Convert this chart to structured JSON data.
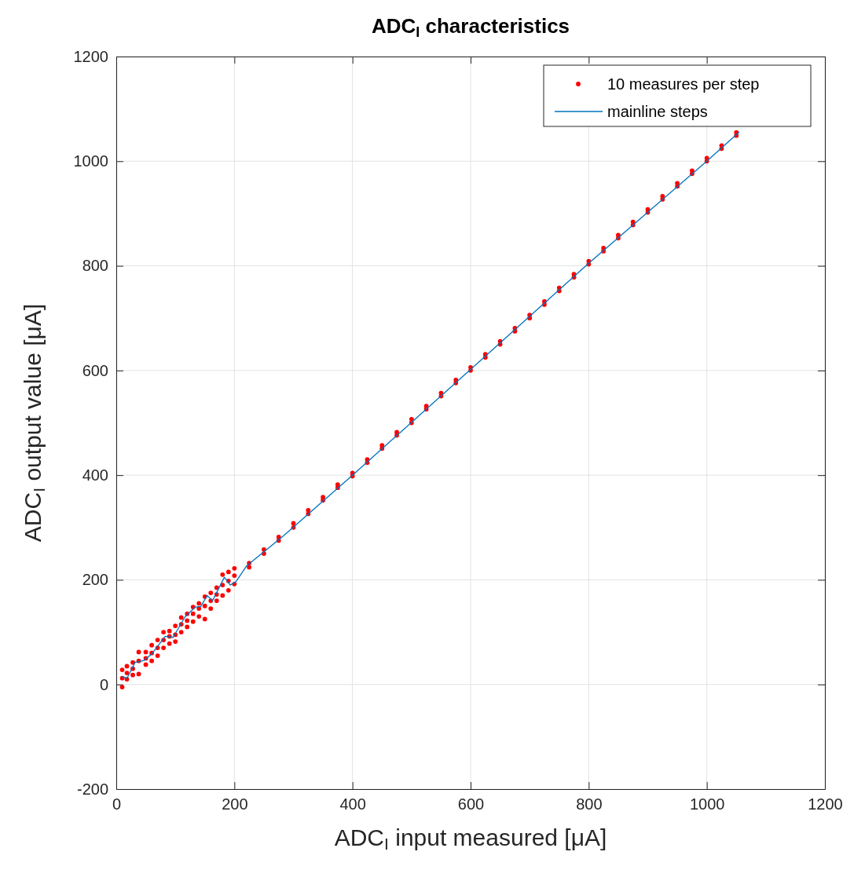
{
  "chart_data": {
    "type": "scatter",
    "title": "ADC$_{I}$ characteristics",
    "xlabel": "ADC$_{I}$ input measured [μA]",
    "ylabel": "ADC$_{I}$ output value [μA]",
    "xlim": [
      0,
      1200
    ],
    "ylim": [
      -200,
      1200
    ],
    "xticks": [
      0,
      200,
      400,
      600,
      800,
      1000,
      1200
    ],
    "yticks": [
      -200,
      0,
      200,
      400,
      600,
      800,
      1000,
      1200
    ],
    "grid": true,
    "legend": "top right",
    "series": [
      {
        "name": "10 measures per step",
        "marker": "circle",
        "color": "#ff0000",
        "x": [
          10,
          10,
          10,
          18,
          18,
          18,
          28,
          28,
          28,
          38,
          38,
          38,
          50,
          50,
          50,
          60,
          60,
          60,
          70,
          70,
          70,
          80,
          80,
          80,
          90,
          90,
          90,
          100,
          100,
          100,
          110,
          110,
          110,
          120,
          120,
          120,
          130,
          130,
          130,
          140,
          140,
          140,
          150,
          150,
          150,
          160,
          160,
          160,
          170,
          170,
          170,
          180,
          180,
          180,
          190,
          190,
          190,
          200,
          200,
          200,
          225,
          225,
          250,
          250,
          275,
          275,
          300,
          300,
          325,
          325,
          350,
          350,
          375,
          375,
          400,
          400,
          425,
          425,
          450,
          450,
          475,
          475,
          500,
          500,
          525,
          525,
          550,
          550,
          575,
          575,
          600,
          600,
          625,
          625,
          650,
          650,
          675,
          675,
          700,
          700,
          725,
          725,
          750,
          750,
          775,
          775,
          800,
          800,
          825,
          825,
          850,
          850,
          875,
          875,
          900,
          900,
          925,
          925,
          950,
          950,
          975,
          975,
          1000,
          1000,
          1025,
          1025,
          1050,
          1050
        ],
        "values": [
          -5,
          12,
          28,
          10,
          22,
          35,
          18,
          30,
          42,
          20,
          45,
          62,
          38,
          50,
          62,
          45,
          60,
          75,
          55,
          70,
          85,
          70,
          85,
          100,
          78,
          92,
          102,
          82,
          95,
          112,
          100,
          115,
          128,
          110,
          122,
          135,
          120,
          135,
          148,
          130,
          145,
          155,
          125,
          150,
          168,
          145,
          160,
          175,
          160,
          172,
          185,
          170,
          190,
          210,
          180,
          198,
          215,
          192,
          208,
          222,
          224,
          232,
          250,
          258,
          275,
          282,
          300,
          308,
          326,
          333,
          352,
          358,
          376,
          382,
          398,
          404,
          424,
          430,
          451,
          457,
          476,
          482,
          500,
          507,
          526,
          532,
          551,
          557,
          576,
          582,
          600,
          606,
          625,
          631,
          650,
          656,
          675,
          681,
          700,
          706,
          726,
          732,
          752,
          758,
          778,
          784,
          803,
          809,
          828,
          834,
          853,
          859,
          878,
          884,
          902,
          908,
          927,
          933,
          952,
          958,
          976,
          982,
          1000,
          1006,
          1024,
          1030,
          1049,
          1055
        ]
      },
      {
        "name": "mainline steps",
        "type": "line",
        "marker": "none",
        "line_style": "solid",
        "color": "#0072bd",
        "x": [
          9.4,
          18.3,
          31.7,
          47.2,
          60.6,
          82.9,
          96.2,
          116.3,
          134,
          143,
          154,
          163,
          183,
          193,
          203,
          221,
          283,
          400,
          600,
          800,
          1000,
          1055
        ],
        "values": [
          15,
          12,
          42,
          46,
          59,
          92,
          90,
          129,
          148,
          149,
          170,
          160,
          205,
          190,
          197,
          227,
          284,
          400,
          602,
          805,
          1000,
          1056
        ]
      }
    ]
  }
}
